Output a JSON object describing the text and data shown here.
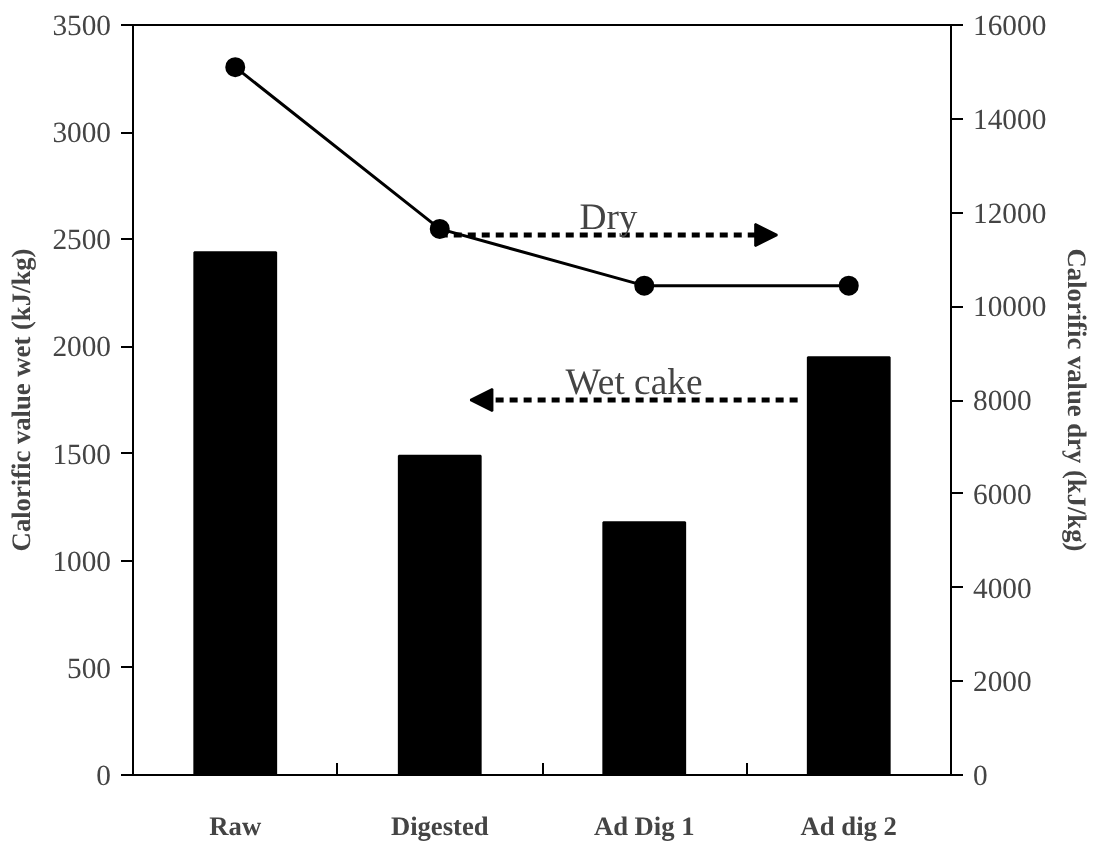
{
  "chart_data": {
    "type": "bar",
    "categories": [
      "Raw",
      "Digested",
      "Ad Dig 1",
      "Ad dig 2"
    ],
    "series": [
      {
        "color": "#000000",
        "values": [
          2440,
          1490,
          1180,
          1950
        ]
      },
      {
        "type": "line",
        "axis": "y2",
        "color": "#000000",
        "values": [
          15100,
          11650,
          10440,
          10440
        ]
      }
    ],
    "ylabel": "Calorific value wet (kJ/kg)",
    "y2label": "Calorific value dry (kJ/kg)",
    "ylim": [
      0,
      3500
    ],
    "yticks": [
      0,
      500,
      1000,
      1500,
      2000,
      2500,
      3000,
      3500
    ],
    "y2lim": [
      0,
      16000
    ],
    "y2ticks": [
      0,
      2000,
      4000,
      6000,
      8000,
      10000,
      12000,
      14000,
      16000
    ],
    "annotations": [
      "Dry",
      "Wet cake"
    ],
    "marker": "circle",
    "line_style": "solid",
    "grid": false
  }
}
